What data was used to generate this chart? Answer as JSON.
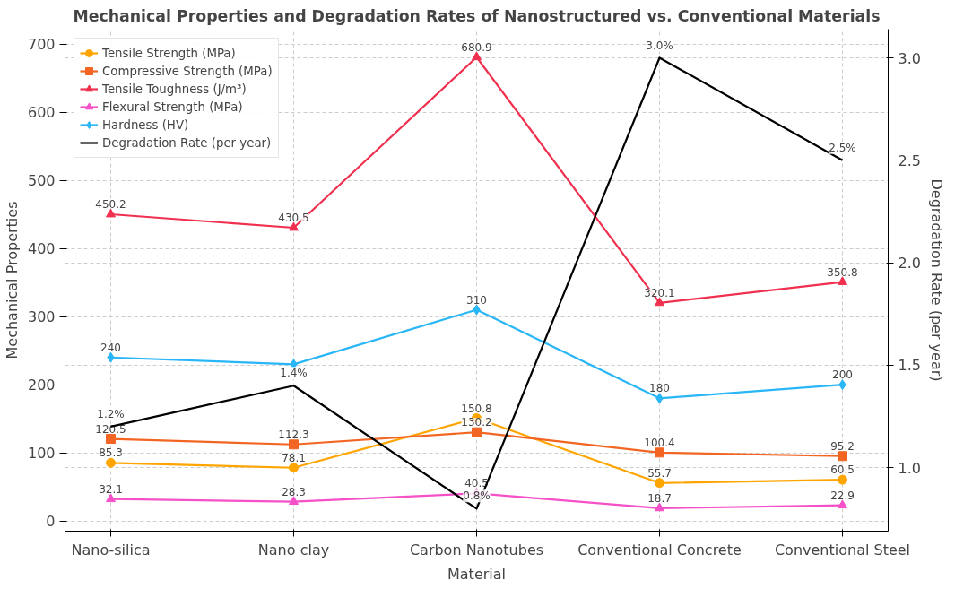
{
  "chart_data": {
    "type": "line",
    "title": "Mechanical Properties and Degradation Rates of Nanostructured vs. Conventional Materials",
    "xlabel": "Material",
    "ylabel": "Mechanical Properties",
    "y2label": "Degradation Rate (per year)",
    "categories": [
      "Nano-silica",
      "Nano clay",
      "Carbon Nanotubes",
      "Conventional Concrete",
      "Conventional Steel"
    ],
    "series": [
      {
        "name": "Tensile Strength (MPa)",
        "color": "#ffa500",
        "marker": "circle",
        "values": [
          85.3,
          78.1,
          150.8,
          55.7,
          60.5
        ],
        "value_labels": [
          "85.3",
          "78.1",
          "150.8",
          "55.7",
          "60.5"
        ]
      },
      {
        "name": "Compressive Strength (MPa)",
        "color": "#f26522",
        "marker": "square",
        "values": [
          120.5,
          112.3,
          130.2,
          100.4,
          95.2
        ],
        "value_labels": [
          "120.5",
          "112.3",
          "130.2",
          "100.4",
          "95.2"
        ]
      },
      {
        "name": "Tensile Toughness (J/m³)",
        "color": "#f0304f",
        "marker": "triangle",
        "values": [
          450.2,
          430.5,
          680.9,
          320.1,
          350.8
        ],
        "value_labels": [
          "450.2",
          "430.5",
          "680.9",
          "320.1",
          "350.8"
        ]
      },
      {
        "name": "Flexural Strength (MPa)",
        "color": "#f550c8",
        "marker": "triangle",
        "values": [
          32.1,
          28.3,
          40.5,
          18.7,
          22.9
        ],
        "value_labels": [
          "32.1",
          "28.3",
          "40.5",
          "18.7",
          "22.9"
        ]
      },
      {
        "name": "Hardness (HV)",
        "color": "#29b6f6",
        "marker": "diamond",
        "values": [
          240,
          230,
          310,
          180,
          200
        ],
        "value_labels": [
          "240",
          null,
          "310",
          "180",
          "200"
        ]
      },
      {
        "name": "Degradation Rate (per year)",
        "color": "#000000",
        "marker": "none",
        "axis": "y2",
        "values": [
          1.2,
          1.4,
          0.8,
          3.0,
          2.5
        ],
        "value_labels": [
          "1.2%",
          "1.4%",
          "0.8%",
          "3.0%",
          "2.5%"
        ]
      }
    ],
    "ylim": [
      -15,
      722
    ],
    "yticks": [
      0,
      100,
      200,
      300,
      400,
      500,
      600,
      700
    ],
    "y2lim": [
      0.69,
      3.14
    ],
    "y2ticks": [
      {
        "value": 1.0,
        "label": "1.0"
      },
      {
        "value": 1.5,
        "label": "1.5"
      },
      {
        "value": 2.0,
        "label": "2.0"
      },
      {
        "value": 2.5,
        "label": "2.5"
      },
      {
        "value": 3.0,
        "label": "3.0"
      }
    ],
    "grid": true,
    "legend": "top left",
    "line_style": "solid"
  }
}
